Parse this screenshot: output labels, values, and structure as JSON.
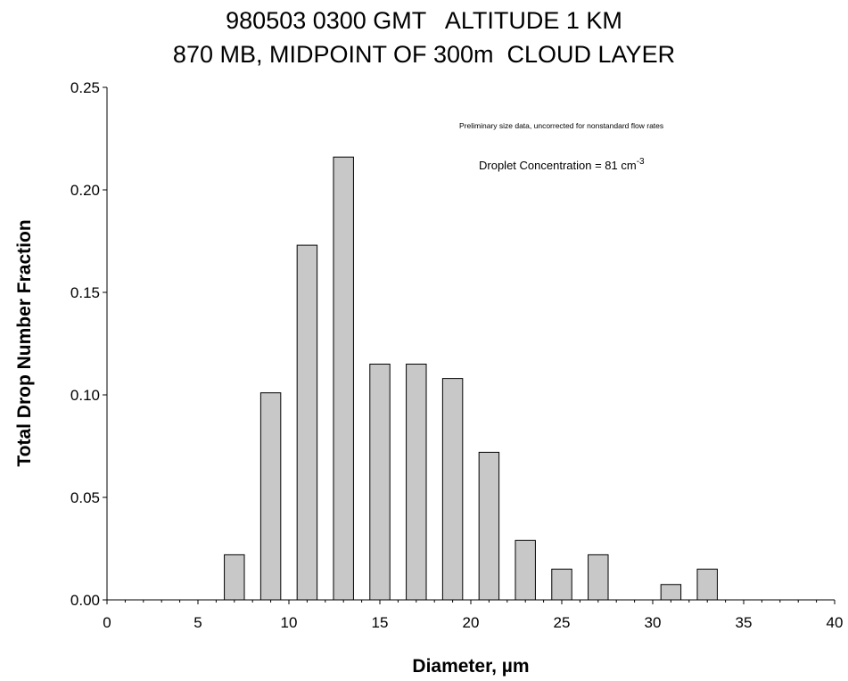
{
  "chart_data": {
    "type": "bar",
    "title": "980503 0300 GMT   ALTITUDE 1 KM",
    "subtitle": "870 MB, MIDPOINT OF 300m  CLOUD LAYER",
    "xlabel": "Diameter,  µm",
    "ylabel": "Total Drop Number Fraction",
    "xlim": [
      0,
      40
    ],
    "ylim": [
      0,
      0.25
    ],
    "xticks": [
      "0",
      "5",
      "10",
      "15",
      "20",
      "25",
      "30",
      "35",
      "40"
    ],
    "yticks": [
      "0.00",
      "0.05",
      "0.10",
      "0.15",
      "0.20",
      "0.25"
    ],
    "x": [
      7,
      9,
      11,
      13,
      15,
      17,
      19,
      21,
      23,
      25,
      27,
      31,
      33
    ],
    "values": [
      0.022,
      0.101,
      0.173,
      0.216,
      0.115,
      0.115,
      0.108,
      0.072,
      0.029,
      0.015,
      0.022,
      0.0075,
      0.015
    ],
    "bar_width": 1.1,
    "grid": false,
    "bar_color": "#c8c8c8",
    "annotations": {
      "note": "Preliminary size data, uncorrected for nonstandard flow rates",
      "concentration_prefix": "Droplet Concentration = 81 cm",
      "concentration_exponent": "-3"
    }
  }
}
